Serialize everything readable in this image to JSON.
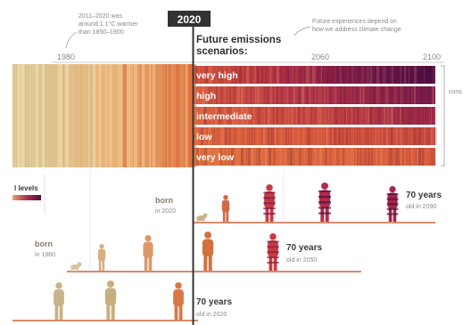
{
  "year_badge": "2020",
  "note_left_line1": "2011–2020 was",
  "note_left_line2": "around 1.1°C warmer",
  "note_left_line3": "than 1850–1900",
  "note_right_line1": "Future experiences depend on",
  "note_right_line2": "how we address climate change",
  "future_title_line1": "Future emissions",
  "future_title_line2": "scenarios:",
  "axis_years": [
    "1980",
    "2060",
    "2100"
  ],
  "scenarios": [
    "very high",
    "high",
    "intermediate",
    "low",
    "very low"
  ],
  "legend_fragment": "l levels",
  "right_edge_fragment": "cons",
  "born_2020": "born",
  "born_2020_sub": "in 2020",
  "born_1980": "born",
  "born_1980_sub": "in 1980",
  "age_label": "70 years",
  "old_in_2090": "old in 2090",
  "old_in_2050": "old in 2050",
  "old_in_2020": "old in 2020",
  "colors": {
    "warm_past": "#e89a5a",
    "future_dark": "#5b1048",
    "scenario_red": "#d5503a",
    "baseline": "#d88a6a",
    "now_line": "#333333",
    "figure_tan": "#c8b48a"
  }
}
